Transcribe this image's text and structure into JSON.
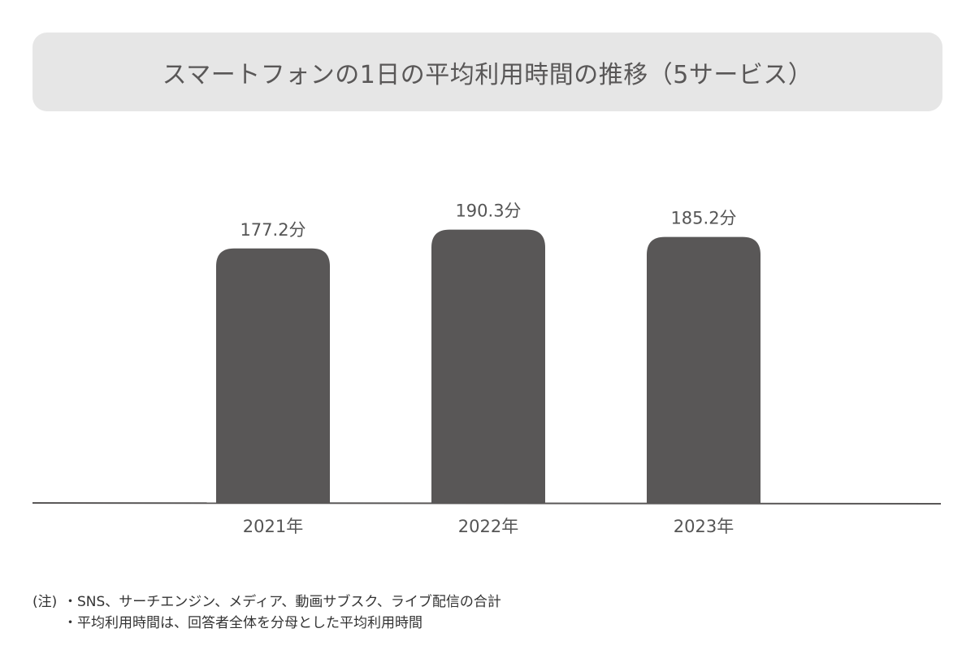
{
  "title": "スマートフォンの1日の平均利用時間の推移（5サービス）",
  "chart_data": {
    "type": "bar",
    "title": "スマートフォンの1日の平均利用時間の推移（5サービス）",
    "categories": [
      "2021年",
      "2022年",
      "2023年"
    ],
    "values": [
      177.2,
      190.3,
      185.2
    ],
    "value_labels": [
      "177.2分",
      "190.3分",
      "185.2分"
    ],
    "unit": "分",
    "xlabel": "",
    "ylabel": "",
    "y_axis_visible": false,
    "grid": false,
    "legend": "none",
    "bar_color": "#595757",
    "baseline_color": "#595757"
  },
  "notes": {
    "prefix": "(注)",
    "line1": "・SNS、サーチエンジン、メディア、動画サブスク、ライブ配信の合計",
    "line2": "・平均利用時間は、回答者全体を分母とした平均利用時間"
  }
}
